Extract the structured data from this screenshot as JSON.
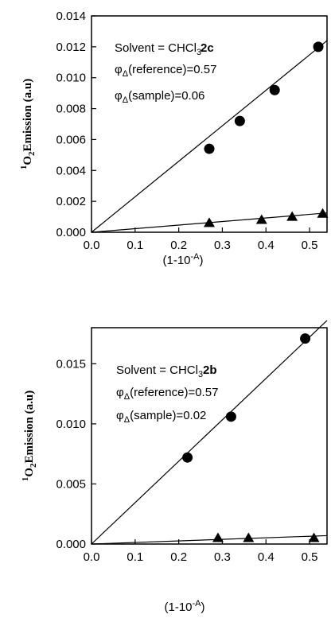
{
  "chart_data": [
    {
      "type": "scatter",
      "panel_label": "2c",
      "annotations": [
        "Solvent = CHCl",
        "3",
        "φ",
        "Δ",
        "(reference)=0.57",
        "φ",
        "Δ",
        "(sample)=0.06"
      ],
      "xlabel": {
        "main": "(1-10",
        "sup": "-A",
        "close": ")"
      },
      "ylabel": {
        "sup": "1",
        "O": "O",
        "sub": "2",
        "rest": "Emission (a.u)"
      },
      "xlim": [
        0,
        0.54
      ],
      "ylim": [
        0,
        0.014
      ],
      "xticks": [
        0.0,
        0.1,
        0.2,
        0.3,
        0.4,
        0.5
      ],
      "xtick_labels": [
        "0.0",
        "0.1",
        "0.2",
        "0.3",
        "0.4",
        "0.5"
      ],
      "yticks": [
        0,
        0.002,
        0.004,
        0.006,
        0.008,
        0.01,
        0.012,
        0.014
      ],
      "ytick_labels": [
        "0.000",
        "0.002",
        "0.004",
        "0.006",
        "0.008",
        "0.010",
        "0.012",
        "0.014"
      ],
      "series": [
        {
          "marker": "circle",
          "x": [
            0.27,
            0.34,
            0.42,
            0.52
          ],
          "y": [
            0.0054,
            0.0072,
            0.0092,
            0.012
          ],
          "fit": [
            [
              0,
              0
            ],
            [
              0.54,
              0.0124
            ]
          ]
        },
        {
          "marker": "triangle",
          "x": [
            0.27,
            0.39,
            0.46,
            0.53
          ],
          "y": [
            0.0006,
            0.0008,
            0.001,
            0.0012
          ],
          "fit": [
            [
              0,
              0
            ],
            [
              0.54,
              0.00125
            ]
          ]
        }
      ]
    },
    {
      "type": "scatter",
      "panel_label": "2b",
      "annotations": [
        "Solvent = CHCl",
        "3",
        "φ",
        "Δ",
        "(reference)=0.57",
        "φ",
        "Δ",
        "(sample)=0.02"
      ],
      "xlabel": {
        "main": "(1-10",
        "sup": "-A",
        "close": ")"
      },
      "ylabel": {
        "sup": "1",
        "O": "O",
        "sub": "2",
        "rest": "Emission (a.u)"
      },
      "xlim": [
        0,
        0.54
      ],
      "ylim": [
        0,
        0.018
      ],
      "xticks": [
        0.0,
        0.1,
        0.2,
        0.3,
        0.4,
        0.5
      ],
      "xtick_labels": [
        "0.0",
        "0.1",
        "0.2",
        "0.3",
        "0.4",
        "0.5"
      ],
      "yticks": [
        0,
        0.005,
        0.01,
        0.015
      ],
      "ytick_labels": [
        "0.000",
        "0.005",
        "0.010",
        "0.015"
      ],
      "series": [
        {
          "marker": "circle",
          "x": [
            0.22,
            0.32,
            0.49
          ],
          "y": [
            0.0072,
            0.0106,
            0.0171
          ],
          "fit": [
            [
              0,
              0
            ],
            [
              0.54,
              0.0186
            ]
          ]
        },
        {
          "marker": "triangle",
          "x": [
            0.29,
            0.36,
            0.51
          ],
          "y": [
            0.0005,
            0.0005,
            0.0005
          ],
          "fit": [
            [
              0,
              0
            ],
            [
              0.54,
              0.0007
            ]
          ]
        }
      ]
    }
  ]
}
